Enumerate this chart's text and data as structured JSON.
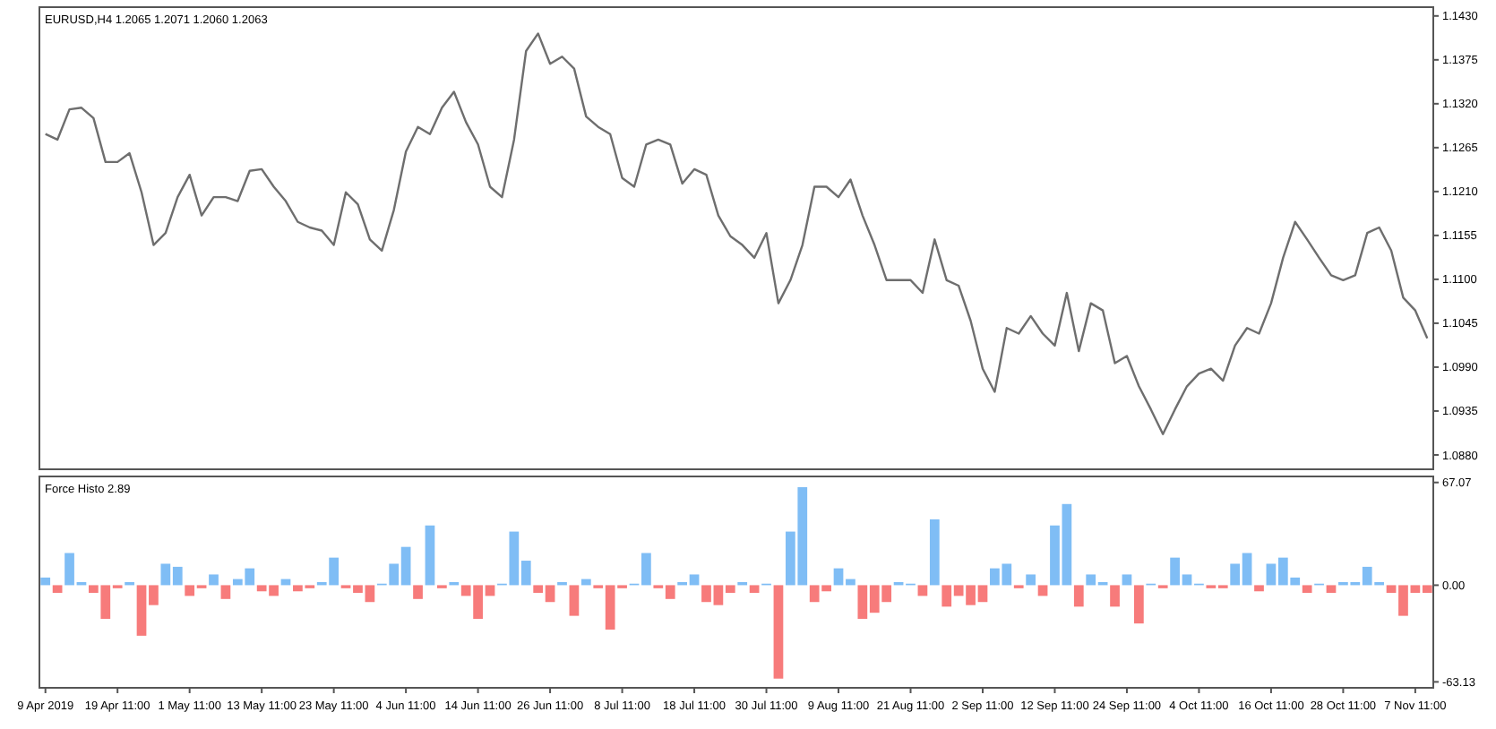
{
  "chart_data": [
    {
      "type": "line",
      "title": "EURUSD,H4  1.2065 1.2071 1.2060 1.2063",
      "categories": [
        null,
        null,
        null,
        null,
        null,
        null,
        null,
        null,
        null,
        null,
        null,
        null,
        null,
        null,
        null,
        null,
        null,
        null,
        null,
        null,
        null,
        null,
        null,
        null,
        null,
        null,
        null,
        null,
        null,
        null,
        null,
        null,
        null,
        null,
        null,
        null,
        null,
        null,
        null,
        null,
        null,
        null,
        null,
        null,
        null,
        null,
        null,
        null,
        null,
        null,
        null,
        null,
        null,
        null,
        null,
        null,
        null,
        null,
        null,
        null,
        null,
        null,
        null,
        null,
        null,
        null,
        null,
        null,
        null,
        null,
        null,
        null,
        null,
        null,
        null,
        null,
        null,
        null,
        null,
        null,
        null,
        null,
        null,
        null,
        null,
        null,
        null,
        null,
        null,
        null,
        null,
        null,
        null,
        null,
        null,
        null,
        null,
        null,
        null,
        null,
        null,
        null,
        null,
        null,
        null,
        null,
        null,
        null,
        null,
        null,
        null,
        null,
        null,
        null,
        null,
        null
      ],
      "values": [
        1.1282,
        1.1275,
        1.1313,
        1.1315,
        1.1302,
        1.1247,
        1.1247,
        1.1258,
        1.1209,
        1.1143,
        1.1158,
        1.1203,
        1.1231,
        1.118,
        1.1203,
        1.1203,
        1.1198,
        1.1236,
        1.1238,
        1.1216,
        1.1198,
        1.1172,
        1.1165,
        1.1161,
        1.1143,
        1.1209,
        1.1194,
        1.115,
        1.1136,
        1.1187,
        1.126,
        1.1291,
        1.1282,
        1.1315,
        1.1335,
        1.1297,
        1.1269,
        1.1216,
        1.1203,
        1.1275,
        1.1386,
        1.1408,
        1.137,
        1.1379,
        1.1364,
        1.1304,
        1.1291,
        1.1282,
        1.1227,
        1.1216,
        1.1269,
        1.1275,
        1.1269,
        1.122,
        1.1238,
        1.1231,
        1.118,
        1.1154,
        1.1143,
        1.1127,
        1.1158,
        1.107,
        1.1099,
        1.1143,
        1.1216,
        1.1216,
        1.1203,
        1.1225,
        1.118,
        1.1143,
        1.1099,
        1.1099,
        1.1099,
        1.1083,
        1.115,
        1.1099,
        1.1092,
        1.1048,
        1.0988,
        1.0959,
        1.1039,
        1.1032,
        1.1054,
        1.1032,
        1.1017,
        1.1083,
        1.101,
        1.107,
        1.1061,
        1.0995,
        1.1004,
        1.0966,
        1.0937,
        1.0906,
        1.0937,
        1.0966,
        1.0982,
        1.0988,
        1.0973,
        1.1017,
        1.1039,
        1.1032,
        1.107,
        1.1127,
        1.1172,
        1.115,
        1.1127,
        1.1105,
        1.1099,
        1.1105,
        1.1158,
        1.1165,
        1.1136,
        1.1077,
        1.1061,
        1.1026
      ],
      "color": "#6e6e6e",
      "ylim": [
        1.0862,
        1.1441
      ],
      "yticks": [
        {
          "value": 1.143,
          "label": "1.1430"
        },
        {
          "value": 1.1375,
          "label": "1.1375"
        },
        {
          "value": 1.132,
          "label": "1.1320"
        },
        {
          "value": 1.1265,
          "label": "1.1265"
        },
        {
          "value": 1.121,
          "label": "1.1210"
        },
        {
          "value": 1.1155,
          "label": "1.1155"
        },
        {
          "value": 1.11,
          "label": "1.1100"
        },
        {
          "value": 1.1045,
          "label": "1.1045"
        },
        {
          "value": 1.099,
          "label": "1.0990"
        },
        {
          "value": 1.0935,
          "label": "1.0935"
        },
        {
          "value": 1.088,
          "label": "1.0880"
        }
      ],
      "tick_labels": "y"
    },
    {
      "type": "bar",
      "title": "Force Histo 2.89",
      "categories": [
        "9 Apr 2019",
        null,
        null,
        null,
        null,
        null,
        "19 Apr 11:00",
        null,
        null,
        null,
        null,
        null,
        "1 May 11:00",
        null,
        null,
        null,
        null,
        null,
        "13 May 11:00",
        null,
        null,
        null,
        null,
        null,
        "23 May 11:00",
        null,
        null,
        null,
        null,
        null,
        "4 Jun 11:00",
        null,
        null,
        null,
        null,
        null,
        "14 Jun 11:00",
        null,
        null,
        null,
        null,
        null,
        "26 Jun 11:00",
        null,
        null,
        null,
        null,
        null,
        "8 Jul 11:00",
        null,
        null,
        null,
        null,
        null,
        "18 Jul 11:00",
        null,
        null,
        null,
        null,
        null,
        "30 Jul 11:00",
        null,
        null,
        null,
        null,
        null,
        "9 Aug 11:00",
        null,
        null,
        null,
        null,
        null,
        "21 Aug 11:00",
        null,
        null,
        null,
        null,
        null,
        "2 Sep 11:00",
        null,
        null,
        null,
        null,
        null,
        "12 Sep 11:00",
        null,
        null,
        null,
        null,
        null,
        "24 Sep 11:00",
        null,
        null,
        null,
        null,
        null,
        "4 Oct 11:00",
        null,
        null,
        null,
        null,
        null,
        "16 Oct 11:00",
        null,
        null,
        null,
        null,
        null,
        "28 Oct 11:00",
        null,
        null,
        null,
        null,
        null,
        "7 Nov 11:00",
        null
      ],
      "values": [
        5,
        -5,
        21,
        2,
        -5,
        -22,
        -2,
        2,
        -33,
        -13,
        14,
        12,
        -7,
        -2,
        7,
        -9,
        4,
        11,
        -4,
        -7,
        4,
        -4,
        -2,
        2,
        18,
        -2,
        -5,
        -11,
        1,
        14,
        25,
        -9,
        39,
        -2,
        2,
        -7,
        -22,
        -7,
        1,
        35,
        16,
        -5,
        -11,
        2,
        -20,
        4,
        -2,
        -29,
        -2,
        1,
        21,
        -2,
        -9,
        2,
        7,
        -11,
        -13,
        -5,
        2,
        -5,
        1,
        -61,
        35,
        64,
        -11,
        -4,
        11,
        4,
        -22,
        -18,
        -11,
        2,
        1,
        -7,
        43,
        -14,
        -7,
        -13,
        -11,
        11,
        14,
        -2,
        7,
        -7,
        39,
        53,
        -14,
        7,
        2,
        -14,
        7,
        -25,
        1,
        -2,
        18,
        7,
        1,
        -2,
        -2,
        14,
        21,
        -4,
        14,
        18,
        5,
        -5,
        1,
        -5,
        2,
        2,
        12,
        2,
        -5,
        -20,
        -5,
        -5
      ],
      "colors": [
        "#7fbdf5",
        "#f77b7b",
        "#7fbdf5",
        "#7fbdf5",
        "#f77b7b",
        "#f77b7b",
        "#f77b7b",
        "#7fbdf5",
        "#f77b7b",
        "#f77b7b",
        "#7fbdf5",
        "#7fbdf5",
        "#f77b7b",
        "#f77b7b",
        "#7fbdf5",
        "#f77b7b",
        "#7fbdf5",
        "#7fbdf5",
        "#f77b7b",
        "#f77b7b",
        "#7fbdf5",
        "#f77b7b",
        "#f77b7b",
        "#7fbdf5",
        "#7fbdf5",
        "#f77b7b",
        "#f77b7b",
        "#f77b7b",
        "#7fbdf5",
        "#7fbdf5",
        "#7fbdf5",
        "#f77b7b",
        "#7fbdf5",
        "#f77b7b",
        "#7fbdf5",
        "#f77b7b",
        "#f77b7b",
        "#f77b7b",
        "#7fbdf5",
        "#7fbdf5",
        "#7fbdf5",
        "#f77b7b",
        "#f77b7b",
        "#7fbdf5",
        "#f77b7b",
        "#7fbdf5",
        "#f77b7b",
        "#f77b7b",
        "#f77b7b",
        "#7fbdf5",
        "#7fbdf5",
        "#f77b7b",
        "#f77b7b",
        "#7fbdf5",
        "#7fbdf5",
        "#f77b7b",
        "#f77b7b",
        "#f77b7b",
        "#7fbdf5",
        "#f77b7b",
        "#7fbdf5",
        "#f77b7b",
        "#7fbdf5",
        "#7fbdf5",
        "#f77b7b",
        "#f77b7b",
        "#7fbdf5",
        "#7fbdf5",
        "#f77b7b",
        "#f77b7b",
        "#f77b7b",
        "#7fbdf5",
        "#7fbdf5",
        "#f77b7b",
        "#7fbdf5",
        "#f77b7b",
        "#f77b7b",
        "#f77b7b",
        "#f77b7b",
        "#7fbdf5",
        "#7fbdf5",
        "#f77b7b",
        "#7fbdf5",
        "#f77b7b",
        "#7fbdf5",
        "#7fbdf5",
        "#f77b7b",
        "#7fbdf5",
        "#7fbdf5",
        "#f77b7b",
        "#7fbdf5",
        "#f77b7b",
        "#7fbdf5",
        "#f77b7b",
        "#7fbdf5",
        "#7fbdf5",
        "#7fbdf5",
        "#f77b7b",
        "#f77b7b",
        "#7fbdf5",
        "#7fbdf5",
        "#f77b7b",
        "#7fbdf5",
        "#7fbdf5",
        "#7fbdf5",
        "#f77b7b",
        "#7fbdf5",
        "#f77b7b",
        "#7fbdf5",
        "#7fbdf5",
        "#7fbdf5",
        "#7fbdf5",
        "#f77b7b",
        "#f77b7b",
        "#f77b7b",
        "#f77b7b"
      ],
      "ylim": [
        -67,
        71
      ],
      "yticks": [
        {
          "value": 67.07,
          "label": "67.07"
        },
        {
          "value": 0,
          "label": "0.00"
        },
        {
          "value": -63.13,
          "label": "-63.13"
        }
      ]
    }
  ]
}
